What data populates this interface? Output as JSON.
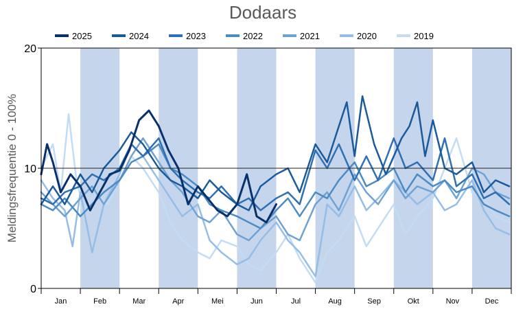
{
  "chart_data": {
    "type": "line",
    "title": "Dodaars",
    "xlabel": "",
    "ylabel": "Meldingsfrequentie 0 - 100%",
    "ylim": [
      0,
      20
    ],
    "yticks": [
      "0",
      "10",
      "20"
    ],
    "reference_line": 10,
    "months": [
      "Jan",
      "Feb",
      "Mar",
      "Apr",
      "Mei",
      "Jun",
      "Jul",
      "Aug",
      "Sep",
      "Okt",
      "Nov",
      "Dec"
    ],
    "shaded_months": [
      "Feb",
      "Apr",
      "Jun",
      "Aug",
      "Okt",
      "Dec"
    ],
    "shade_color": "#c5d5ec",
    "legend_position": "top",
    "series": [
      {
        "name": "2025",
        "color": "#08306b",
        "width": 3,
        "x": [
          0.0,
          0.15,
          0.3,
          0.5,
          0.75,
          1.0,
          1.25,
          1.5,
          1.75,
          2.0,
          2.25,
          2.5,
          2.75,
          3.0,
          3.25,
          3.5,
          3.75,
          4.0,
          4.25,
          4.5,
          4.75,
          5.0,
          5.25,
          5.5,
          5.75,
          6.0
        ],
        "y": [
          9.5,
          12.0,
          10.5,
          8.0,
          9.5,
          8.5,
          6.5,
          8.0,
          9.5,
          9.8,
          11.5,
          14.0,
          14.8,
          13.5,
          11.5,
          10.0,
          7.0,
          8.5,
          7.5,
          6.5,
          6.0,
          7.0,
          9.5,
          6.0,
          5.5,
          7.0
        ]
      },
      {
        "name": "2024",
        "color": "#1a5a9b",
        "width": 2.5,
        "x": [
          0.0,
          0.3,
          0.6,
          1.0,
          1.3,
          1.6,
          2.0,
          2.3,
          2.6,
          3.0,
          3.3,
          3.6,
          4.0,
          4.3,
          4.6,
          5.0,
          5.3,
          5.6,
          6.0,
          6.3,
          6.6,
          7.0,
          7.3,
          7.6,
          7.8,
          8.0,
          8.2,
          8.5,
          8.8,
          9.0,
          9.2,
          9.4,
          9.6,
          9.8,
          10.0,
          10.3,
          10.6,
          11.0,
          11.3,
          11.6,
          11.95
        ],
        "y": [
          7.0,
          8.5,
          7.0,
          9.5,
          8.0,
          10.0,
          11.5,
          13.0,
          12.0,
          10.0,
          9.0,
          8.5,
          7.5,
          9.0,
          8.0,
          7.0,
          6.5,
          8.5,
          9.5,
          10.0,
          8.0,
          12.0,
          10.5,
          13.5,
          15.5,
          11.0,
          16.0,
          12.0,
          9.5,
          11.0,
          12.5,
          13.5,
          15.5,
          11.0,
          14.0,
          10.0,
          9.5,
          10.5,
          8.0,
          9.0,
          8.5
        ]
      },
      {
        "name": "2023",
        "color": "#2e70b3",
        "width": 2.5,
        "x": [
          0.0,
          0.3,
          0.6,
          1.0,
          1.3,
          1.6,
          2.0,
          2.3,
          2.6,
          3.0,
          3.3,
          3.6,
          4.0,
          4.3,
          4.6,
          5.0,
          5.3,
          5.6,
          6.0,
          6.3,
          6.6,
          7.0,
          7.3,
          7.6,
          8.0,
          8.3,
          8.6,
          9.0,
          9.3,
          9.6,
          10.0,
          10.3,
          10.6,
          11.0,
          11.3,
          11.6,
          11.95
        ],
        "y": [
          7.5,
          7.0,
          8.0,
          8.5,
          9.5,
          9.0,
          10.0,
          12.0,
          11.0,
          12.5,
          10.0,
          9.0,
          8.0,
          7.5,
          8.5,
          7.0,
          7.5,
          6.5,
          7.5,
          8.0,
          7.0,
          11.5,
          10.0,
          12.0,
          9.0,
          11.0,
          9.0,
          12.5,
          10.0,
          10.5,
          9.0,
          12.5,
          8.5,
          9.5,
          7.5,
          8.0,
          7.0
        ]
      },
      {
        "name": "2022",
        "color": "#4a8bc4",
        "width": 2.5,
        "x": [
          0.0,
          0.3,
          0.6,
          1.0,
          1.3,
          1.6,
          2.0,
          2.3,
          2.6,
          3.0,
          3.3,
          3.6,
          4.0,
          4.3,
          4.6,
          5.0,
          5.3,
          5.6,
          6.0,
          6.3,
          6.6,
          7.0,
          7.3,
          7.6,
          8.0,
          8.3,
          8.6,
          9.0,
          9.3,
          9.6,
          10.0,
          10.3,
          10.6,
          11.0,
          11.3,
          11.6,
          11.95
        ],
        "y": [
          7.0,
          6.5,
          7.5,
          6.0,
          7.0,
          8.0,
          9.0,
          10.5,
          11.0,
          12.0,
          10.0,
          9.5,
          8.5,
          7.0,
          6.5,
          6.0,
          5.5,
          5.0,
          6.5,
          7.5,
          6.0,
          8.0,
          7.5,
          9.0,
          10.5,
          8.5,
          9.0,
          10.0,
          8.0,
          9.5,
          8.5,
          9.0,
          8.0,
          8.5,
          7.0,
          6.5,
          6.0
        ]
      },
      {
        "name": "2021",
        "color": "#6fa2d4",
        "width": 2.5,
        "x": [
          0.0,
          0.3,
          0.6,
          1.0,
          1.3,
          1.6,
          2.0,
          2.3,
          2.6,
          3.0,
          3.3,
          3.6,
          4.0,
          4.3,
          4.6,
          5.0,
          5.3,
          5.6,
          6.0,
          6.3,
          6.6,
          7.0,
          7.3,
          7.6,
          8.0,
          8.3,
          8.6,
          9.0,
          9.3,
          9.6,
          10.0,
          10.3,
          10.6,
          11.0,
          11.3,
          11.6,
          11.95
        ],
        "y": [
          8.0,
          7.0,
          6.0,
          7.5,
          8.5,
          7.0,
          9.0,
          11.0,
          12.5,
          10.5,
          9.0,
          8.0,
          6.0,
          5.5,
          6.5,
          4.5,
          4.0,
          5.0,
          6.0,
          4.5,
          4.0,
          7.0,
          8.0,
          6.5,
          9.5,
          8.0,
          7.0,
          9.0,
          7.5,
          8.5,
          8.0,
          9.0,
          7.5,
          10.0,
          9.5,
          8.0,
          7.5
        ]
      },
      {
        "name": "2020",
        "color": "#95bde5",
        "width": 2.5,
        "x": [
          0.0,
          0.3,
          0.6,
          0.8,
          1.0,
          1.3,
          1.6,
          2.0,
          2.3,
          2.6,
          3.0,
          3.3,
          3.6,
          4.0,
          4.3,
          4.6,
          5.0,
          5.3,
          5.6,
          6.0,
          6.3,
          6.6,
          7.0,
          7.3,
          7.6,
          8.0,
          8.3,
          8.6,
          9.0,
          9.3,
          9.6,
          10.0,
          10.3,
          10.6,
          11.0,
          11.3,
          11.6,
          11.95
        ],
        "y": [
          9.0,
          7.5,
          6.5,
          3.5,
          8.0,
          3.0,
          7.0,
          9.5,
          12.0,
          11.0,
          9.0,
          7.5,
          6.0,
          7.0,
          4.0,
          3.0,
          2.0,
          2.5,
          4.0,
          5.5,
          4.0,
          3.0,
          1.0,
          7.0,
          6.0,
          8.5,
          6.5,
          7.5,
          9.0,
          8.0,
          7.0,
          8.0,
          6.5,
          7.0,
          9.0,
          6.5,
          5.0,
          4.5
        ]
      },
      {
        "name": "2019",
        "color": "#c3dcf4",
        "width": 2.5,
        "x": [
          0.0,
          0.3,
          0.5,
          0.7,
          0.9,
          1.1,
          1.4,
          1.7,
          2.0,
          2.3,
          2.6,
          3.0,
          3.3,
          3.6,
          4.0,
          4.3,
          4.6,
          5.0,
          5.3,
          5.6,
          6.0,
          6.3,
          6.6,
          7.0,
          7.3,
          7.6,
          8.0,
          8.3,
          8.6,
          9.0,
          9.3,
          9.6,
          10.0,
          10.3,
          10.6,
          11.0,
          11.3,
          11.6,
          11.95
        ],
        "y": [
          10.0,
          12.0,
          8.0,
          14.5,
          9.0,
          6.5,
          8.0,
          7.0,
          9.0,
          11.0,
          10.0,
          8.0,
          5.5,
          4.0,
          3.0,
          2.5,
          4.0,
          3.5,
          2.0,
          1.5,
          3.0,
          4.5,
          2.5,
          0.5,
          3.0,
          4.0,
          6.0,
          3.5,
          5.0,
          7.0,
          4.5,
          6.0,
          7.5,
          10.0,
          12.5,
          8.0,
          7.5,
          6.0,
          5.5
        ]
      }
    ]
  }
}
